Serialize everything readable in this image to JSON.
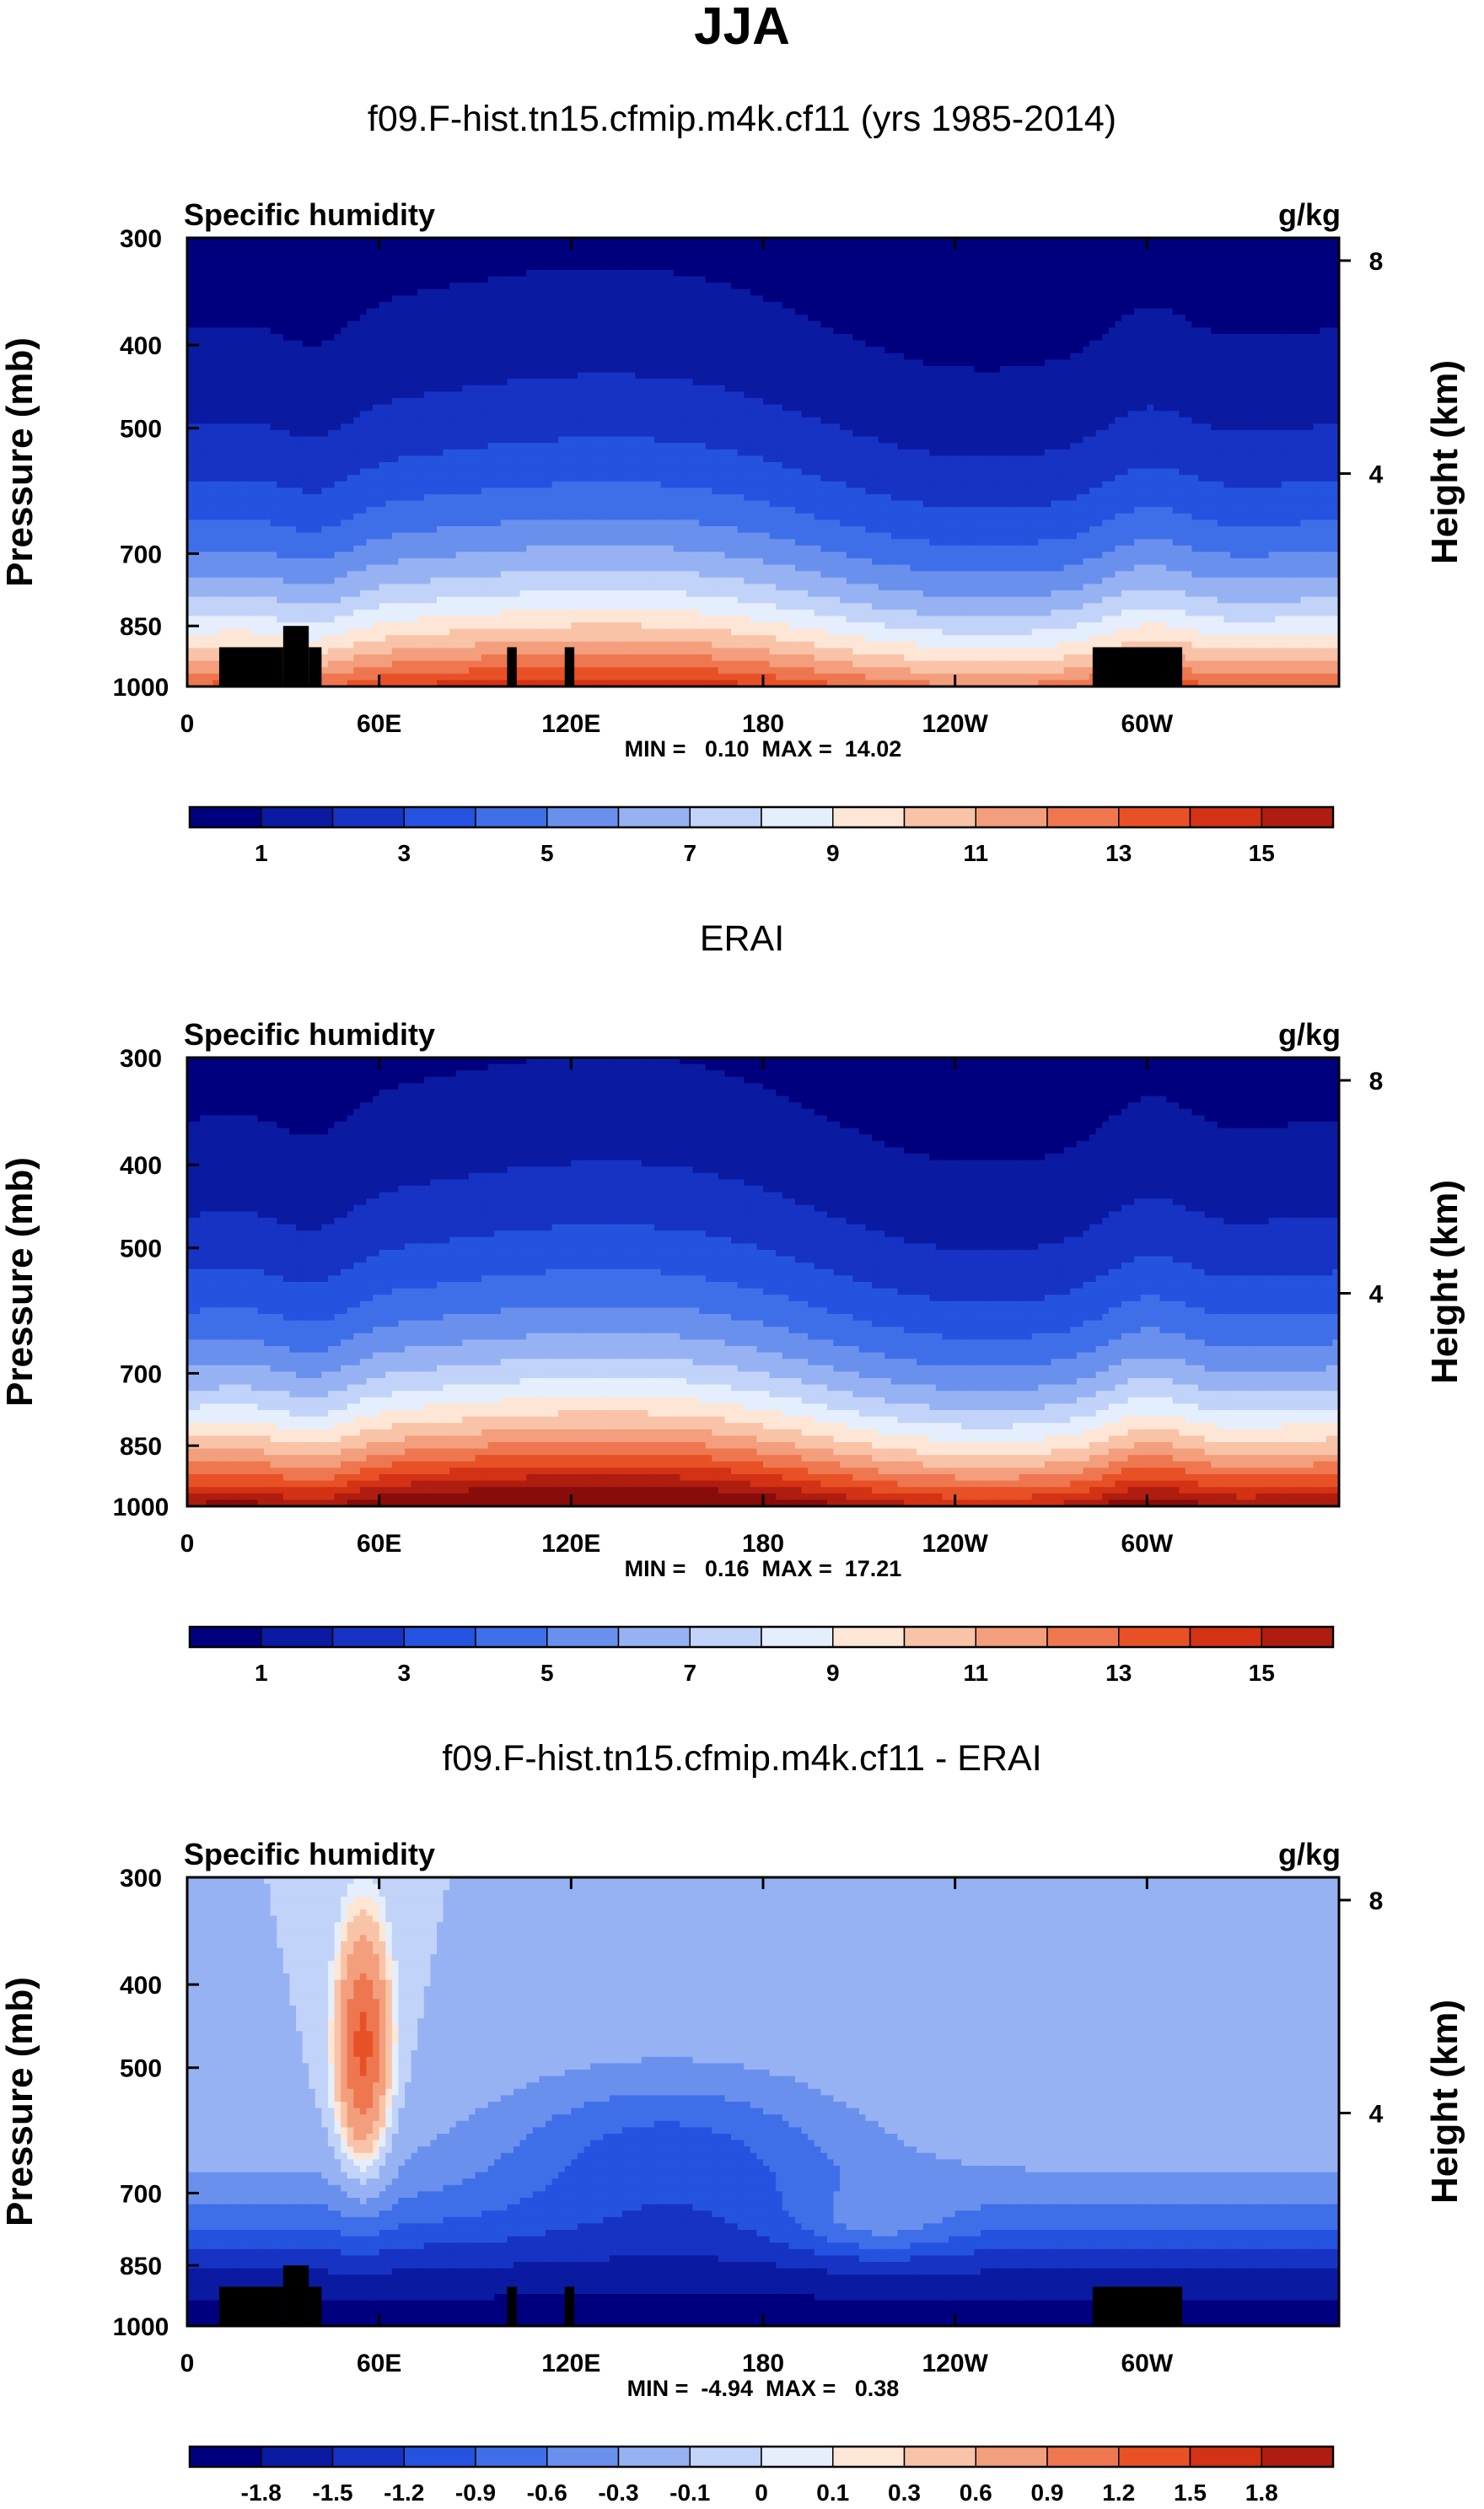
{
  "main_title": "JJA",
  "colors": {
    "seq": [
      "#00007f",
      "#0a1ba1",
      "#1733c4",
      "#2453e0",
      "#3f6fe8",
      "#6a90ee",
      "#97b2f3",
      "#c1d3f8",
      "#e5eefc",
      "#fde6d6",
      "#f9c3a8",
      "#f39e7c",
      "#ee7750",
      "#e85126",
      "#d33214",
      "#ae1d0f",
      "#880c0a"
    ],
    "diff": [
      "#00007f",
      "#0a1ba1",
      "#1733c4",
      "#2453e0",
      "#3f6fe8",
      "#6a90ee",
      "#97b2f3",
      "#c1d3f8",
      "#e5eefc",
      "#fde6d6",
      "#f9c3a8",
      "#f39e7c",
      "#ee7750",
      "#e85126",
      "#d33214",
      "#ae1d0f",
      "#880c0a"
    ],
    "land": "#000000"
  },
  "panels": [
    {
      "title": "f09.F-hist.tn15.cfmip.m4k.cf11 (yrs 1985-2014)",
      "left_label": "Specific humidity",
      "units": "g/kg",
      "ylabel": "Pressure (mb)",
      "y2label": "Height (km)",
      "minmax": "MIN =   0.10  MAX =  14.02",
      "kind": "model",
      "cbar_labels": [
        "1",
        "3",
        "5",
        "7",
        "9",
        "11",
        "13",
        "15"
      ],
      "cbar_label_slots": [
        1,
        3,
        5,
        7,
        9,
        11,
        13,
        15
      ],
      "cbar_colors": "seq"
    },
    {
      "title": "ERAI",
      "left_label": "Specific humidity",
      "units": "g/kg",
      "ylabel": "Pressure (mb)",
      "y2label": "Height (km)",
      "minmax": "MIN =   0.16  MAX =  17.21",
      "kind": "obs",
      "cbar_labels": [
        "1",
        "3",
        "5",
        "7",
        "9",
        "11",
        "13",
        "15"
      ],
      "cbar_label_slots": [
        1,
        3,
        5,
        7,
        9,
        11,
        13,
        15
      ],
      "cbar_colors": "seq"
    },
    {
      "title": "f09.F-hist.tn15.cfmip.m4k.cf11 - ERAI",
      "left_label": "Specific humidity",
      "units": "g/kg",
      "ylabel": "Pressure (mb)",
      "y2label": "Height (km)",
      "minmax": "MIN =  -4.94  MAX =   0.38",
      "kind": "diff",
      "cbar_labels": [
        "-1.8",
        "-1.5",
        "-1.2",
        "-0.9",
        "-0.6",
        "-0.3",
        "-0.1",
        "0",
        "0.1",
        "0.3",
        "0.6",
        "0.9",
        "1.2",
        "1.5",
        "1.8"
      ],
      "cbar_label_slots": [
        1,
        2,
        3,
        4,
        5,
        6,
        7,
        8,
        9,
        10,
        11,
        12,
        13,
        14,
        15
      ],
      "cbar_colors": "diff"
    }
  ],
  "chart_data": [
    {
      "type": "heatmap",
      "title": "f09.F-hist.tn15.cfmip.m4k.cf11 (yrs 1985-2014)",
      "variable": "Specific humidity",
      "units": "g/kg",
      "x_ticks": [
        "0",
        "60E",
        "120E",
        "180",
        "120W",
        "60W"
      ],
      "x_tick_lon": [
        0,
        60,
        120,
        180,
        240,
        300
      ],
      "y_ticks": [
        "300",
        "400",
        "500",
        "700",
        "850",
        "1000"
      ],
      "y_tick_p": [
        300,
        400,
        500,
        700,
        850,
        1000
      ],
      "y2_ticks": [
        "8",
        "4"
      ],
      "y2_tick_km": [
        8,
        4
      ],
      "ylim": [
        1000,
        300
      ],
      "xlim": [
        0,
        360
      ],
      "min": 0.1,
      "max": 14.02,
      "levels": [
        1,
        2,
        3,
        4,
        5,
        6,
        7,
        8,
        9,
        10,
        11,
        12,
        13,
        14,
        15,
        16
      ],
      "topo": [
        [
          10,
          30,
          900
        ],
        [
          30,
          38,
          850
        ],
        [
          38,
          42,
          900
        ],
        [
          100,
          103,
          900
        ],
        [
          118,
          121,
          900
        ],
        [
          283,
          311,
          900
        ]
      ]
    },
    {
      "type": "heatmap",
      "title": "ERAI",
      "variable": "Specific humidity",
      "units": "g/kg",
      "x_ticks": [
        "0",
        "60E",
        "120E",
        "180",
        "120W",
        "60W"
      ],
      "x_tick_lon": [
        0,
        60,
        120,
        180,
        240,
        300
      ],
      "y_ticks": [
        "300",
        "400",
        "500",
        "700",
        "850",
        "1000"
      ],
      "y_tick_p": [
        300,
        400,
        500,
        700,
        850,
        1000
      ],
      "y2_ticks": [
        "8",
        "4"
      ],
      "y2_tick_km": [
        8,
        4
      ],
      "ylim": [
        1000,
        300
      ],
      "xlim": [
        0,
        360
      ],
      "min": 0.16,
      "max": 17.21,
      "levels": [
        1,
        2,
        3,
        4,
        5,
        6,
        7,
        8,
        9,
        10,
        11,
        12,
        13,
        14,
        15,
        16
      ]
    },
    {
      "type": "heatmap",
      "title": "f09.F-hist.tn15.cfmip.m4k.cf11 - ERAI",
      "variable": "Specific humidity",
      "units": "g/kg",
      "x_ticks": [
        "0",
        "60E",
        "120E",
        "180",
        "120W",
        "60W"
      ],
      "x_tick_lon": [
        0,
        60,
        120,
        180,
        240,
        300
      ],
      "y_ticks": [
        "300",
        "400",
        "500",
        "700",
        "850",
        "1000"
      ],
      "y_tick_p": [
        300,
        400,
        500,
        700,
        850,
        1000
      ],
      "y2_ticks": [
        "8",
        "4"
      ],
      "y2_tick_km": [
        8,
        4
      ],
      "ylim": [
        1000,
        300
      ],
      "xlim": [
        0,
        360
      ],
      "min": -4.94,
      "max": 0.38,
      "levels": [
        -2.1,
        -1.8,
        -1.5,
        -1.2,
        -0.9,
        -0.6,
        -0.3,
        -0.1,
        0,
        0.1,
        0.3,
        0.6,
        0.9,
        1.2,
        1.5,
        1.8
      ],
      "topo": [
        [
          10,
          30,
          900
        ],
        [
          30,
          38,
          850
        ],
        [
          38,
          42,
          900
        ],
        [
          100,
          103,
          900
        ],
        [
          118,
          121,
          900
        ],
        [
          283,
          311,
          900
        ]
      ]
    }
  ]
}
